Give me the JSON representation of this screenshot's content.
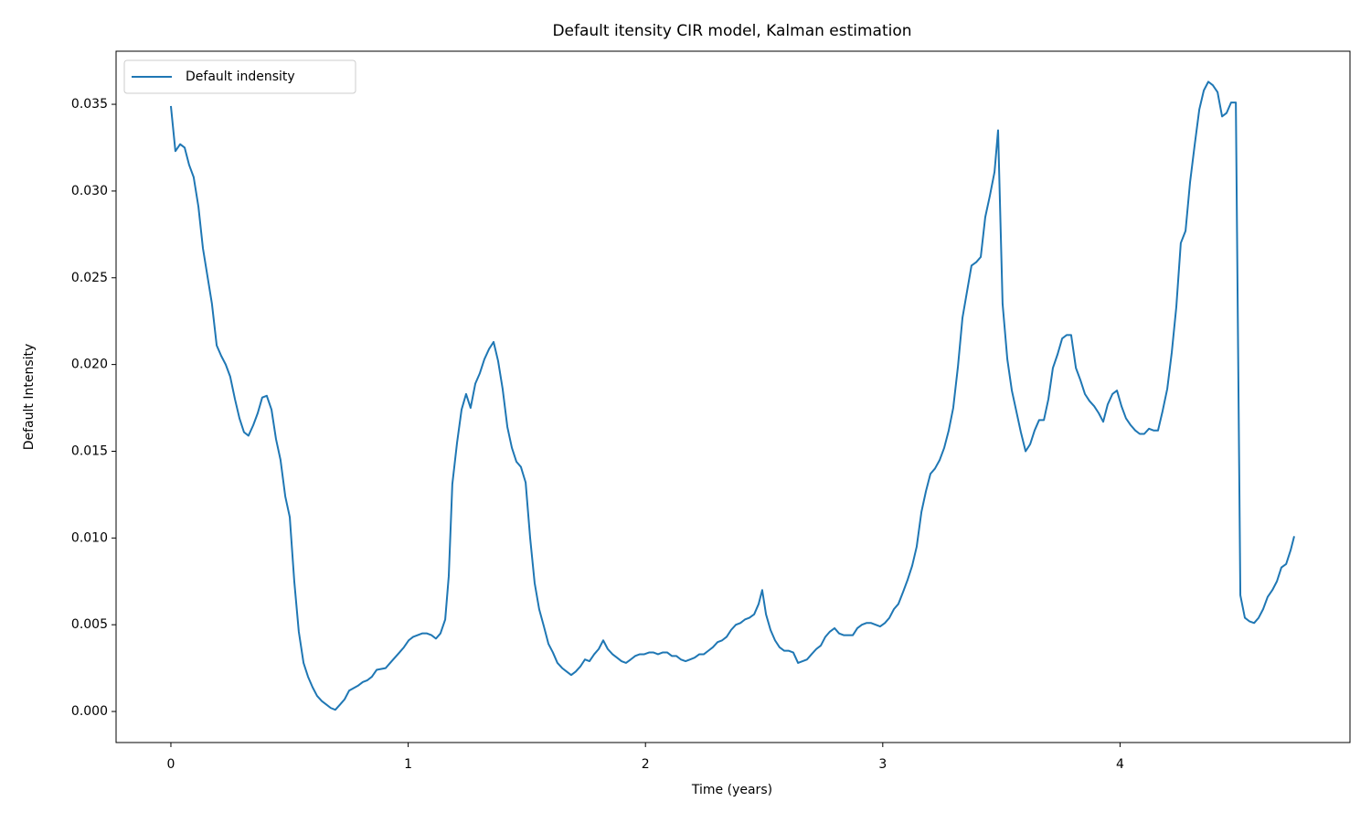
{
  "chart_data": {
    "type": "line",
    "title": "Default itensity CIR model, Kalman estimation",
    "xlabel": "Time (years)",
    "ylabel": "Default Intensity",
    "legend": "upper left",
    "x": [
      0,
      0.019,
      0.039,
      0.058,
      0.077,
      0.096,
      0.116,
      0.135,
      0.173,
      0.193,
      0.212,
      0.231,
      0.25,
      0.27,
      0.289,
      0.308,
      0.327,
      0.347,
      0.366,
      0.385,
      0.404,
      0.424,
      0.443,
      0.462,
      0.482,
      0.501,
      0.52,
      0.539,
      0.559,
      0.578,
      0.597,
      0.616,
      0.636,
      0.655,
      0.674,
      0.693,
      0.713,
      0.732,
      0.751,
      0.79,
      0.809,
      0.828,
      0.847,
      0.867,
      0.905,
      0.924,
      0.963,
      0.982,
      1.002,
      1.021,
      1.04,
      1.059,
      1.079,
      1.098,
      1.117,
      1.136,
      1.156,
      1.171,
      1.186,
      1.206,
      1.225,
      1.244,
      1.263,
      1.283,
      1.302,
      1.321,
      1.341,
      1.36,
      1.379,
      1.398,
      1.418,
      1.437,
      1.456,
      1.475,
      1.495,
      1.514,
      1.533,
      1.552,
      1.572,
      1.591,
      1.61,
      1.629,
      1.649,
      1.668,
      1.687,
      1.706,
      1.726,
      1.745,
      1.764,
      1.784,
      1.803,
      1.822,
      1.841,
      1.861,
      1.88,
      1.899,
      1.918,
      1.938,
      1.957,
      1.976,
      1.995,
      2.015,
      2.034,
      2.053,
      2.072,
      2.092,
      2.111,
      2.13,
      2.149,
      2.169,
      2.188,
      2.207,
      2.227,
      2.246,
      2.265,
      2.284,
      2.304,
      2.323,
      2.342,
      2.361,
      2.381,
      2.4,
      2.419,
      2.438,
      2.458,
      2.477,
      2.492,
      2.508,
      2.527,
      2.546,
      2.565,
      2.585,
      2.604,
      2.623,
      2.643,
      2.662,
      2.681,
      2.7,
      2.72,
      2.739,
      2.758,
      2.777,
      2.797,
      2.816,
      2.835,
      2.854,
      2.874,
      2.893,
      2.912,
      2.931,
      2.951,
      2.97,
      2.989,
      3.009,
      3.028,
      3.047,
      3.066,
      3.086,
      3.105,
      3.124,
      3.143,
      3.163,
      3.182,
      3.201,
      3.22,
      3.24,
      3.259,
      3.278,
      3.297,
      3.317,
      3.336,
      3.355,
      3.374,
      3.394,
      3.413,
      3.432,
      3.451,
      3.471,
      3.486,
      3.505,
      3.525,
      3.544,
      3.563,
      3.582,
      3.602,
      3.621,
      3.64,
      3.659,
      3.679,
      3.698,
      3.717,
      3.737,
      3.756,
      3.775,
      3.794,
      3.814,
      3.833,
      3.852,
      3.871,
      3.891,
      3.91,
      3.929,
      3.948,
      3.968,
      3.987,
      4.006,
      4.025,
      4.045,
      4.064,
      4.083,
      4.102,
      4.122,
      4.141,
      4.16,
      4.179,
      4.199,
      4.218,
      4.237,
      4.256,
      4.276,
      4.295,
      4.314,
      4.334,
      4.353,
      4.372,
      4.391,
      4.411,
      4.43,
      4.449,
      4.468,
      4.488,
      4.507,
      4.526,
      4.545,
      4.565,
      4.584,
      4.603,
      4.622,
      4.642,
      4.661,
      4.68,
      4.7,
      4.719,
      4.734
    ],
    "series": [
      {
        "name": "Default indensity",
        "color": "#1f77b4",
        "values": [
          0.0349,
          0.0323,
          0.0327,
          0.0325,
          0.0315,
          0.0308,
          0.0291,
          0.0267,
          0.0235,
          0.0211,
          0.0205,
          0.02,
          0.0193,
          0.018,
          0.0169,
          0.0161,
          0.0159,
          0.0165,
          0.0172,
          0.0181,
          0.0182,
          0.0174,
          0.0157,
          0.0145,
          0.0124,
          0.0112,
          0.0075,
          0.0046,
          0.0028,
          0.002,
          0.0014,
          0.0009,
          0.0006,
          0.0004,
          0.0002,
          0.0001,
          0.0004,
          0.0007,
          0.0012,
          0.0015,
          0.0017,
          0.0018,
          0.002,
          0.0024,
          0.0025,
          0.0028,
          0.0034,
          0.0037,
          0.0041,
          0.0043,
          0.0044,
          0.0045,
          0.0045,
          0.0044,
          0.0042,
          0.0045,
          0.0053,
          0.0078,
          0.0131,
          0.0155,
          0.0174,
          0.0183,
          0.0175,
          0.0189,
          0.0195,
          0.0203,
          0.0209,
          0.0213,
          0.0202,
          0.0186,
          0.0164,
          0.0152,
          0.0144,
          0.0141,
          0.0132,
          0.01,
          0.0074,
          0.0059,
          0.0049,
          0.0039,
          0.0034,
          0.0028,
          0.0025,
          0.0023,
          0.0021,
          0.0023,
          0.0026,
          0.003,
          0.0029,
          0.0033,
          0.0036,
          0.0041,
          0.0036,
          0.0033,
          0.0031,
          0.0029,
          0.0028,
          0.003,
          0.0032,
          0.0033,
          0.0033,
          0.0034,
          0.0034,
          0.0033,
          0.0034,
          0.0034,
          0.0032,
          0.0032,
          0.003,
          0.0029,
          0.003,
          0.0031,
          0.0033,
          0.0033,
          0.0035,
          0.0037,
          0.004,
          0.0041,
          0.0043,
          0.0047,
          0.005,
          0.0051,
          0.0053,
          0.0054,
          0.0056,
          0.0062,
          0.007,
          0.0056,
          0.0047,
          0.0041,
          0.0037,
          0.0035,
          0.0035,
          0.0034,
          0.0028,
          0.0029,
          0.003,
          0.0033,
          0.0036,
          0.0038,
          0.0043,
          0.0046,
          0.0048,
          0.0045,
          0.0044,
          0.0044,
          0.0044,
          0.0048,
          0.005,
          0.0051,
          0.0051,
          0.005,
          0.0049,
          0.0051,
          0.0054,
          0.0059,
          0.0062,
          0.0069,
          0.0076,
          0.0084,
          0.0095,
          0.0115,
          0.0127,
          0.0137,
          0.014,
          0.0145,
          0.0152,
          0.0162,
          0.0175,
          0.0199,
          0.0227,
          0.0242,
          0.0257,
          0.0259,
          0.0262,
          0.0285,
          0.0297,
          0.0311,
          0.0335,
          0.0235,
          0.0203,
          0.0185,
          0.0173,
          0.0161,
          0.015,
          0.0154,
          0.0162,
          0.0168,
          0.0168,
          0.018,
          0.0198,
          0.0206,
          0.0215,
          0.0217,
          0.0217,
          0.0198,
          0.0191,
          0.0183,
          0.0179,
          0.0176,
          0.0172,
          0.0167,
          0.0177,
          0.0183,
          0.0185,
          0.0176,
          0.0169,
          0.0165,
          0.0162,
          0.016,
          0.016,
          0.0163,
          0.0162,
          0.0162,
          0.0173,
          0.0186,
          0.0207,
          0.0233,
          0.027,
          0.0277,
          0.0305,
          0.0326,
          0.0347,
          0.0358,
          0.0363,
          0.0361,
          0.0357,
          0.0343,
          0.0345,
          0.0351,
          0.0351,
          0.0067,
          0.0054,
          0.0052,
          0.0051,
          0.0054,
          0.0059,
          0.0066,
          0.007,
          0.0075,
          0.0083,
          0.0085,
          0.0093,
          0.0101
        ]
      }
    ],
    "xlim": [
      -0.231,
      4.969
    ],
    "ylim": [
      -0.00179,
      0.03806
    ],
    "xticks": [
      0,
      1,
      2,
      3,
      4
    ],
    "yticks": [
      {
        "value": 0,
        "label": "0.000"
      },
      {
        "value": 0.005,
        "label": "0.005"
      },
      {
        "value": 0.01,
        "label": "0.010"
      },
      {
        "value": 0.015,
        "label": "0.015"
      },
      {
        "value": 0.02,
        "label": "0.020"
      },
      {
        "value": 0.025,
        "label": "0.025"
      },
      {
        "value": 0.03,
        "label": "0.030"
      },
      {
        "value": 0.035,
        "label": "0.035"
      }
    ],
    "grid": false
  }
}
